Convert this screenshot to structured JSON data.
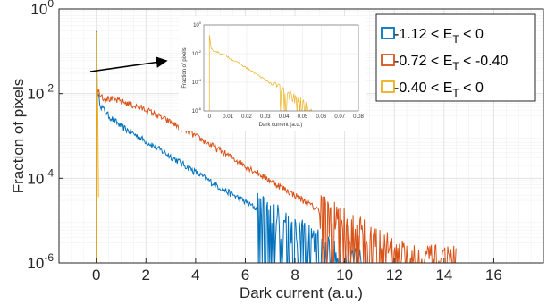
{
  "chart_data": {
    "type": "line",
    "xlabel": "Dark current (a.u.)",
    "ylabel": "Fraction of pixels",
    "x_ticks": [
      0,
      2,
      4,
      6,
      8,
      10,
      12,
      14,
      16
    ],
    "x_range": [
      -1.5,
      18
    ],
    "y_scale": "log",
    "y_range": [
      1e-06,
      1
    ],
    "y_ticks": [
      {
        "value": 1e-06,
        "base": "10",
        "exp": "-6"
      },
      {
        "value": 0.0001,
        "base": "10",
        "exp": "-4"
      },
      {
        "value": 0.01,
        "base": "10",
        "exp": "-2"
      },
      {
        "value": 1,
        "base": "10",
        "exp": "0"
      }
    ],
    "grid": true,
    "minor_grid": true,
    "legend_position": "top-right",
    "series": [
      {
        "name": "-1.12 < E_T < 0",
        "label_parts": [
          "-1.12 < E",
          "T",
          " < 0"
        ],
        "color": "#0072BD",
        "peak": {
          "x": 0.0,
          "y": 0.3
        },
        "x": [
          0.05,
          0.2,
          0.5,
          1,
          2,
          3,
          4,
          5,
          6,
          7,
          8,
          9,
          10
        ],
        "y": [
          0.01,
          0.005,
          0.003,
          0.0017,
          0.00075,
          0.00033,
          0.00014,
          6e-05,
          2.8e-05,
          1.2e-05,
          5e-06,
          2.2e-06,
          1e-06
        ],
        "noise_from_x": 6.5,
        "end_x": 11
      },
      {
        "name": "-0.72 < E_T < -0.40",
        "label_parts": [
          "-0.72 < E",
          "T",
          " < -0.40"
        ],
        "color": "#D95319",
        "peak": {
          "x": 0.0,
          "y": 0.012
        },
        "x": [
          0.05,
          0.3,
          0.7,
          1,
          2,
          3,
          4,
          5,
          6,
          7,
          8,
          9,
          10,
          11,
          12,
          13
        ],
        "y": [
          0.012,
          0.008,
          0.0072,
          0.0066,
          0.0042,
          0.0021,
          0.001,
          0.00045,
          0.0002,
          9e-05,
          4e-05,
          1.7e-05,
          7.5e-06,
          3.5e-06,
          1.6e-06,
          1e-06
        ],
        "noise_from_x": 9.0,
        "end_x": 14.5
      },
      {
        "name": "-0.40 < E_T < 0",
        "label_parts": [
          "-0.40 < E",
          "T",
          " < 0"
        ],
        "color": "#EDB120",
        "peak": {
          "x": 0.0,
          "y": 0.25
        },
        "x": [
          0.0,
          0.02,
          0.05,
          0.08,
          0.1
        ],
        "y": [
          0.25,
          0.05,
          0.01,
          0.001,
          1e-06
        ],
        "noise_from_x": 99,
        "end_x": 0.1
      }
    ],
    "inset": {
      "xlabel": "Dark current (a.u.)",
      "ylabel": "Fraction of pixels",
      "x_ticks": [
        "0",
        "0.01",
        "0.02",
        "0.03",
        "0.04",
        "0.05",
        "0.06",
        "0.07",
        "0.08"
      ],
      "x_range": [
        -0.003,
        0.08
      ],
      "y_ticks": [
        {
          "value": 1e-06,
          "base": "10",
          "exp": "-6"
        },
        {
          "value": 0.0001,
          "base": "10",
          "exp": "-4"
        },
        {
          "value": 0.01,
          "base": "10",
          "exp": "-2"
        },
        {
          "value": 1,
          "base": "10",
          "exp": "0"
        }
      ],
      "series_color": "#EDB120",
      "x": [
        0.0,
        0.001,
        0.005,
        0.01,
        0.02,
        0.03,
        0.04,
        0.045,
        0.05,
        0.055
      ],
      "y": [
        0.2,
        0.02,
        0.012,
        0.006,
        0.001,
        0.00015,
        2e-05,
        8e-06,
        3e-06,
        1e-06
      ]
    }
  }
}
